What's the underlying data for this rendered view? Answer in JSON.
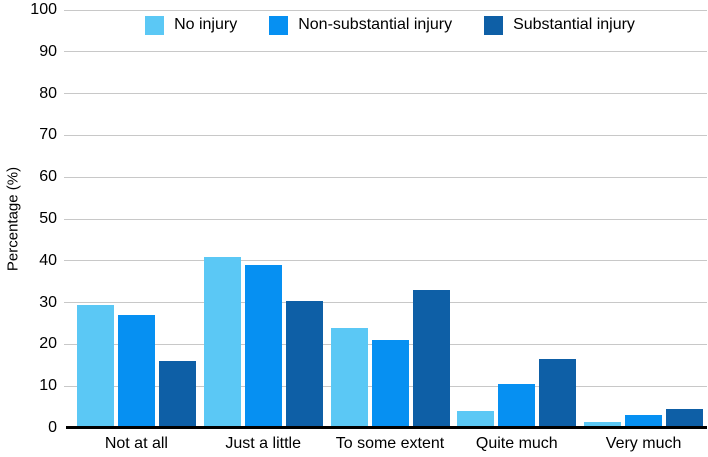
{
  "chart_data": {
    "type": "bar",
    "title": "",
    "xlabel": "",
    "ylabel": "Percentage (%)",
    "ylim": [
      0,
      100
    ],
    "yticks": [
      0,
      10,
      20,
      30,
      40,
      50,
      60,
      70,
      80,
      90,
      100
    ],
    "grid": true,
    "legend_position": "top-center-inside-plot",
    "categories": [
      "Not at all",
      "Just a little",
      "To some extent",
      "Quite much",
      "Very much"
    ],
    "series": [
      {
        "name": "No injury",
        "color": "#5BC8F5",
        "values": [
          29.5,
          41.0,
          24.0,
          4.0,
          1.5
        ]
      },
      {
        "name": "Non-substantial injury",
        "color": "#0690F2",
        "values": [
          27.0,
          39.0,
          21.0,
          10.5,
          3.0
        ]
      },
      {
        "name": "Substantial injury",
        "color": "#0E5FA6",
        "values": [
          16.0,
          30.5,
          33.0,
          16.5,
          4.5
        ]
      }
    ]
  },
  "style": {
    "background": "#FFFFFF",
    "gridline_color": "#C8C8C8",
    "axis_color": "#000000",
    "text_color": "#000000"
  }
}
